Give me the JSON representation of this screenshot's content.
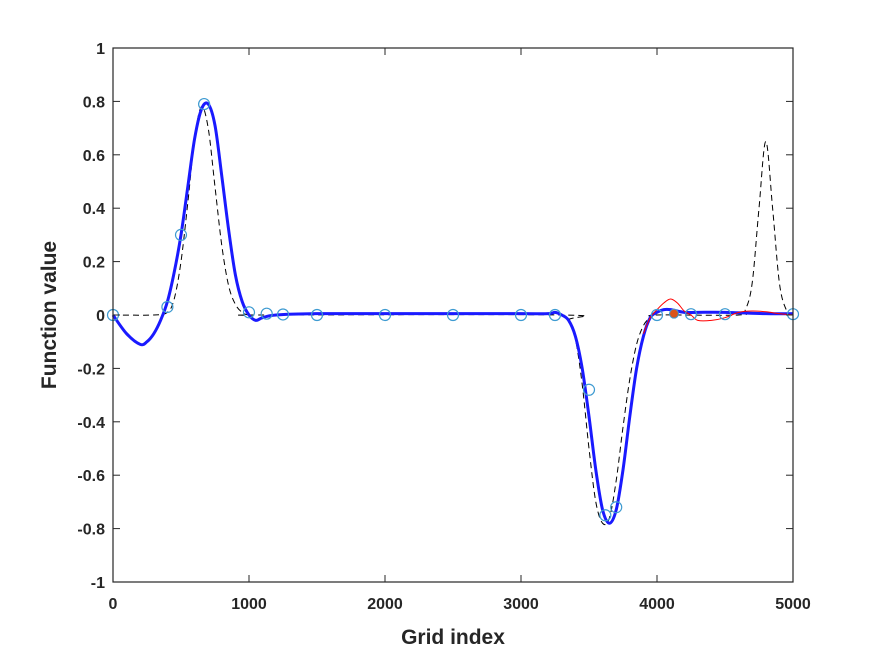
{
  "chart_data": {
    "type": "line",
    "title": "",
    "xlabel": "Grid index",
    "ylabel": "Function value",
    "xlim": [
      0,
      5000
    ],
    "ylim": [
      -1,
      1
    ],
    "xticks": [
      0,
      1000,
      2000,
      3000,
      4000,
      5000
    ],
    "xtick_labels": [
      "0",
      "1000",
      "2000",
      "3000",
      "4000",
      "5000"
    ],
    "yticks": [
      -1,
      -0.8,
      -0.6,
      -0.4,
      -0.2,
      0,
      0.2,
      0.4,
      0.6,
      0.8,
      1
    ],
    "ytick_labels": [
      "-1",
      "-0.8",
      "-0.6",
      "-0.4",
      "-0.2",
      "0",
      "0.2",
      "0.4",
      "0.6",
      "0.8",
      "1"
    ],
    "grid": false,
    "box": true,
    "series": [
      {
        "style": "dashed",
        "color": "#000000",
        "x": [
          0,
          300,
          400,
          450,
          500,
          550,
          600,
          650,
          700,
          750,
          800,
          850,
          900,
          950,
          1000,
          1100,
          3300,
          3350,
          3400,
          3450,
          3500,
          3550,
          3600,
          3650,
          3700,
          3750,
          3800,
          3850,
          3900,
          3950,
          4000,
          4600,
          4650,
          4700,
          4750,
          4800,
          4850,
          4900,
          4950,
          5000
        ],
        "y": [
          0,
          0,
          0.01,
          0.06,
          0.2,
          0.42,
          0.66,
          0.78,
          0.7,
          0.48,
          0.26,
          0.11,
          0.04,
          0.01,
          0,
          0,
          0,
          -0.02,
          -0.09,
          -0.26,
          -0.5,
          -0.7,
          -0.78,
          -0.76,
          -0.62,
          -0.42,
          -0.24,
          -0.11,
          -0.04,
          -0.01,
          0,
          0,
          0.02,
          0.12,
          0.4,
          0.65,
          0.4,
          0.12,
          0.02,
          0
        ]
      },
      {
        "style": "solid",
        "color": "#1a1aff",
        "width": 3,
        "x": [
          0,
          100,
          200,
          250,
          300,
          350,
          400,
          450,
          500,
          550,
          600,
          650,
          700,
          750,
          800,
          850,
          900,
          950,
          1000,
          1050,
          1100,
          1200,
          1500,
          2000,
          2500,
          3000,
          3200,
          3250,
          3300,
          3350,
          3400,
          3450,
          3500,
          3550,
          3600,
          3650,
          3700,
          3750,
          3800,
          3850,
          3900,
          3950,
          4000,
          4050,
          4100,
          4200,
          4300,
          4500,
          4800,
          5000
        ],
        "y": [
          0,
          -0.07,
          -0.11,
          -0.1,
          -0.07,
          -0.02,
          0.05,
          0.16,
          0.3,
          0.48,
          0.66,
          0.77,
          0.79,
          0.71,
          0.52,
          0.32,
          0.15,
          0.05,
          0,
          -0.02,
          -0.01,
          0,
          0.005,
          0.005,
          0.005,
          0.005,
          0.005,
          0.01,
          0.0,
          -0.02,
          -0.08,
          -0.2,
          -0.38,
          -0.58,
          -0.73,
          -0.78,
          -0.73,
          -0.58,
          -0.38,
          -0.2,
          -0.08,
          -0.01,
          0.01,
          0.02,
          0.02,
          0.01,
          0.01,
          0.01,
          0.005,
          0.005
        ]
      },
      {
        "style": "solid",
        "color": "#ff0000",
        "width": 1,
        "x": [
          3900,
          3950,
          4000,
          4050,
          4100,
          4150,
          4200,
          4250,
          4300,
          4400,
          4500,
          4600,
          4700,
          4800,
          4900,
          5000
        ],
        "y": [
          -0.07,
          -0.01,
          0.02,
          0.045,
          0.06,
          0.045,
          0.015,
          0.0,
          -0.02,
          -0.02,
          -0.01,
          0.01,
          0.015,
          0.012,
          0.005,
          0
        ]
      }
    ],
    "markers": {
      "shape": "circle",
      "color": "#3d9ad1",
      "x": [
        0,
        400,
        500,
        670,
        1000,
        1130,
        1250,
        1500,
        2000,
        2500,
        3000,
        3250,
        3500,
        3620,
        3700,
        4000,
        4250,
        4500,
        5000
      ],
      "y": [
        0,
        0.03,
        0.3,
        0.79,
        0.01,
        0.005,
        0.002,
        0,
        0,
        0,
        0,
        0,
        -0.28,
        -0.75,
        -0.72,
        0,
        0.003,
        0.003,
        0.003
      ]
    },
    "highlight": {
      "shape": "filled-circle",
      "color": "#d95319",
      "x": 4125,
      "y": 0.005
    }
  }
}
